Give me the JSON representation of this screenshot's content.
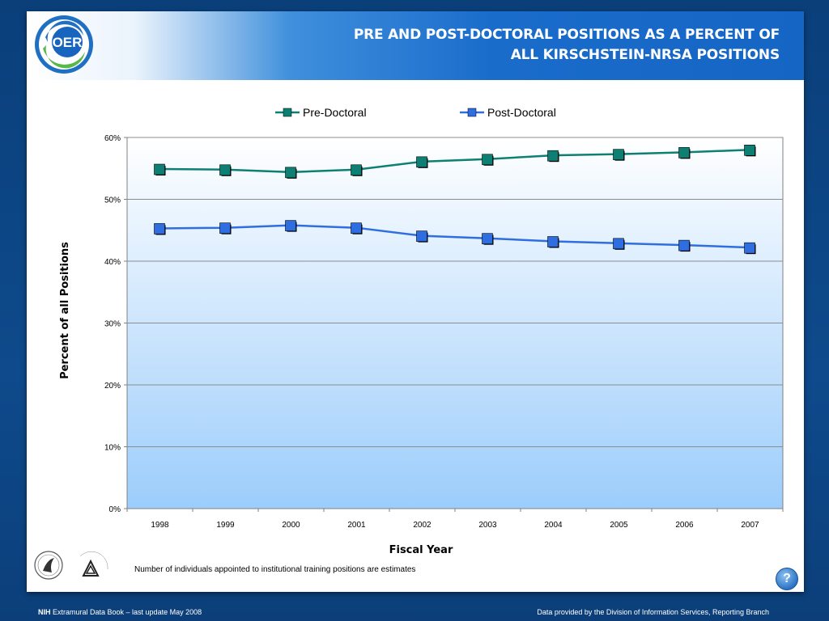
{
  "header": {
    "logo_text": "OER",
    "title_line1": "PRE AND POST-DOCTORAL POSITIONS AS A PERCENT OF",
    "title_line2": "ALL KIRSCHSTEIN-NRSA POSITIONS"
  },
  "chart_data": {
    "type": "line",
    "title": "",
    "xlabel": "Fiscal Year",
    "ylabel": "Percent of all Positions",
    "categories": [
      "1998",
      "1999",
      "2000",
      "2001",
      "2002",
      "2003",
      "2004",
      "2005",
      "2006",
      "2007"
    ],
    "yticks": [
      "0%",
      "10%",
      "20%",
      "30%",
      "40%",
      "50%",
      "60%"
    ],
    "ylim": [
      0,
      60
    ],
    "grid": true,
    "legend_position": "top",
    "series": [
      {
        "name": "Pre-Doctoral",
        "color": "#0e7f73",
        "values": [
          54.9,
          54.8,
          54.4,
          54.8,
          56.1,
          56.5,
          57.1,
          57.3,
          57.6,
          58.0
        ]
      },
      {
        "name": "Post-Doctoral",
        "color": "#2f6ee0",
        "values": [
          45.3,
          45.4,
          45.8,
          45.4,
          44.1,
          43.7,
          43.2,
          42.9,
          42.6,
          42.2
        ]
      }
    ]
  },
  "footnote": "Number of individuals appointed to institutional training positions are estimates",
  "seals": {
    "nih_text": "NATIONAL INSTITUTES OF HEALTH"
  },
  "help_label": "?",
  "footer": {
    "left_bold": "NIH",
    "left_text": " Extramural Data Book – last update May 2008",
    "right_text": "Data provided by the Division of Information Services, Reporting Branch"
  }
}
